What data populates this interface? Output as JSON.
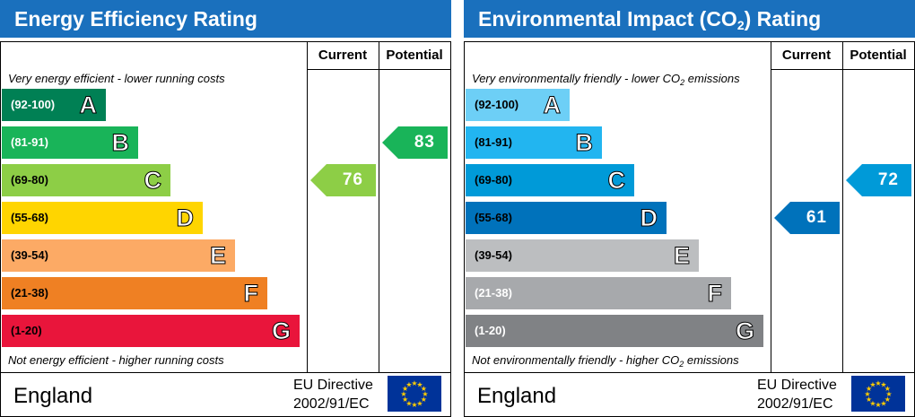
{
  "chart_data": [
    {
      "type": "bar",
      "title": "Energy Efficiency Rating",
      "columns": [
        "Current",
        "Potential"
      ],
      "top_note": "Very energy efficient - lower running costs",
      "bottom_note": "Not energy efficient - higher running costs",
      "bands": [
        {
          "range": "(92-100)",
          "letter": "A",
          "color": "#008054",
          "text_color": "#ffffff"
        },
        {
          "range": "(81-91)",
          "letter": "B",
          "color": "#19b459",
          "text_color": "#ffffff"
        },
        {
          "range": "(69-80)",
          "letter": "C",
          "color": "#8dce46",
          "text_color": "#000000"
        },
        {
          "range": "(55-68)",
          "letter": "D",
          "color": "#ffd500",
          "text_color": "#000000"
        },
        {
          "range": "(39-54)",
          "letter": "E",
          "color": "#fcaa65",
          "text_color": "#000000"
        },
        {
          "range": "(21-38)",
          "letter": "F",
          "color": "#ef8023",
          "text_color": "#000000"
        },
        {
          "range": "(1-20)",
          "letter": "G",
          "color": "#e9153b",
          "text_color": "#000000"
        }
      ],
      "current": {
        "value": "76",
        "band": "C",
        "color": "#8dce46"
      },
      "potential": {
        "value": "83",
        "band": "B",
        "color": "#19b459"
      },
      "country": "England",
      "directive": [
        "EU Directive",
        "2002/91/EC"
      ]
    },
    {
      "type": "bar",
      "title": "Environmental Impact (CO2) Rating",
      "title_parts": [
        "Environmental Impact (CO",
        "2",
        ") Rating"
      ],
      "columns": [
        "Current",
        "Potential"
      ],
      "top_note": "Very environmentally friendly - lower CO2 emissions",
      "top_note_parts": [
        "Very environmentally friendly - lower CO",
        "2",
        " emissions"
      ],
      "bottom_note": "Not environmentally friendly - higher CO2 emissions",
      "bottom_note_parts": [
        "Not environmentally friendly - higher CO",
        "2",
        " emissions"
      ],
      "bands": [
        {
          "range": "(92-100)",
          "letter": "A",
          "color": "#6dcff6",
          "text_color": "#000000"
        },
        {
          "range": "(81-91)",
          "letter": "B",
          "color": "#22b5f0",
          "text_color": "#000000"
        },
        {
          "range": "(69-80)",
          "letter": "C",
          "color": "#009ad8",
          "text_color": "#000000"
        },
        {
          "range": "(55-68)",
          "letter": "D",
          "color": "#0072bb",
          "text_color": "#000000"
        },
        {
          "range": "(39-54)",
          "letter": "E",
          "color": "#bcbec0",
          "text_color": "#000000"
        },
        {
          "range": "(21-38)",
          "letter": "F",
          "color": "#a7a9ac",
          "text_color": "#ffffff"
        },
        {
          "range": "(1-20)",
          "letter": "G",
          "color": "#808285",
          "text_color": "#ffffff"
        }
      ],
      "current": {
        "value": "61",
        "band": "D",
        "color": "#0072bb"
      },
      "potential": {
        "value": "72",
        "band": "C",
        "color": "#009ad8"
      },
      "country": "England",
      "directive": [
        "EU Directive",
        "2002/91/EC"
      ]
    }
  ]
}
